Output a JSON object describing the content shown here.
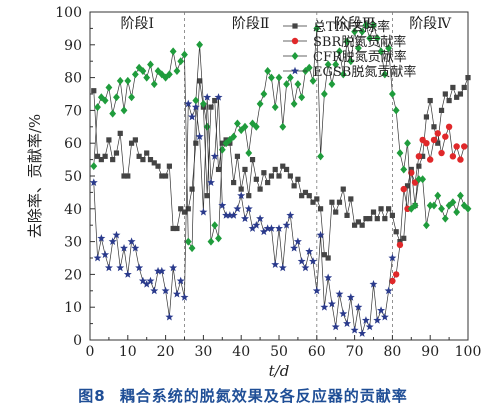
{
  "caption": {
    "figure_no": "图8",
    "text": "耦合系统的脱氮效果及各反应器的贡献率"
  },
  "chart_data": {
    "type": "line",
    "xlabel": "t/d",
    "ylabel": "去除率、贡献率/%",
    "xlim": [
      0,
      100
    ],
    "ylim": [
      0,
      100
    ],
    "x_ticks": [
      0,
      10,
      20,
      30,
      40,
      50,
      60,
      70,
      80,
      90,
      100
    ],
    "y_ticks": [
      0,
      10,
      20,
      30,
      40,
      50,
      60,
      70,
      80,
      90,
      100
    ],
    "phase_boundaries": [
      25,
      60,
      80
    ],
    "phases": [
      {
        "label": "阶段Ⅰ",
        "center": 12.5
      },
      {
        "label": "阶段Ⅱ",
        "center": 42.5
      },
      {
        "label": "阶段Ⅲ",
        "center": 70
      },
      {
        "label": "阶段Ⅳ",
        "center": 90
      }
    ],
    "legend_position": "top-right",
    "series": [
      {
        "name": "总TIN去除率",
        "color": "#444444",
        "marker": "square",
        "x": [
          1,
          2,
          3,
          4,
          5,
          6,
          7,
          8,
          9,
          10,
          11,
          12,
          13,
          14,
          15,
          16,
          17,
          18,
          19,
          20,
          21,
          22,
          23,
          24,
          25,
          26,
          27,
          28,
          29,
          30,
          31,
          32,
          33,
          34,
          35,
          36,
          37,
          38,
          39,
          40,
          41,
          42,
          43,
          44,
          45,
          46,
          47,
          48,
          49,
          50,
          51,
          52,
          53,
          54,
          55,
          56,
          57,
          58,
          59,
          60,
          61,
          62,
          63,
          64,
          65,
          66,
          67,
          68,
          69,
          70,
          71,
          72,
          73,
          74,
          75,
          76,
          77,
          78,
          79,
          80,
          81,
          82,
          83,
          84,
          85,
          86,
          87,
          88,
          89,
          90,
          91,
          92,
          93,
          94,
          95,
          96,
          97,
          98,
          99,
          100
        ],
        "y": [
          76,
          56,
          55,
          56,
          61,
          55,
          57,
          63,
          50,
          50,
          60,
          61,
          56,
          55,
          57,
          55,
          54,
          53,
          50,
          50,
          53,
          34,
          34,
          40,
          39,
          40,
          46,
          60,
          79,
          71,
          44,
          71,
          73,
          52,
          60,
          61,
          60,
          48,
          56,
          46,
          52,
          44,
          55,
          49,
          46,
          51,
          48,
          50,
          52,
          50,
          53,
          52,
          50,
          47,
          49,
          44,
          45,
          44,
          42,
          43,
          40,
          26,
          25,
          42,
          39,
          42,
          46,
          38,
          43,
          35,
          36,
          35,
          37,
          37,
          39,
          37,
          40,
          37,
          40,
          38,
          33,
          30,
          31,
          47,
          52,
          41,
          53,
          56,
          68,
          73,
          65,
          60,
          70,
          75,
          73,
          77,
          74,
          75,
          77,
          80
        ]
      },
      {
        "name": "SBR脱氮贡献率",
        "color": "#e0282a",
        "marker": "circle",
        "x": [
          80,
          81,
          82,
          83,
          84,
          85,
          86,
          87,
          88,
          89,
          90,
          91,
          92,
          93,
          94,
          95,
          96,
          97,
          98,
          99
        ],
        "y": [
          18,
          20,
          29,
          46,
          40,
          51,
          48,
          56,
          61,
          60,
          55,
          61,
          63,
          57,
          62,
          65,
          56,
          59,
          55,
          59
        ]
      },
      {
        "name": "CFR脱氮贡献率",
        "color": "#1f9c3c",
        "marker": "diamond",
        "x": [
          1,
          2,
          3,
          4,
          5,
          6,
          7,
          8,
          9,
          10,
          11,
          12,
          13,
          14,
          15,
          16,
          17,
          18,
          19,
          20,
          21,
          22,
          23,
          24,
          25,
          26,
          27,
          28,
          29,
          30,
          31,
          32,
          33,
          34,
          35,
          36,
          37,
          38,
          39,
          40,
          41,
          42,
          43,
          44,
          45,
          46,
          47,
          48,
          49,
          50,
          51,
          52,
          53,
          54,
          55,
          56,
          57,
          58,
          59,
          60,
          61,
          62,
          63,
          64,
          65,
          66,
          67,
          68,
          69,
          70,
          71,
          72,
          73,
          74,
          75,
          76,
          77,
          78,
          79,
          80,
          81,
          82,
          83,
          84,
          85,
          86,
          87,
          88,
          89,
          90,
          91,
          92,
          93,
          94,
          95,
          96,
          97,
          98,
          99,
          100
        ],
        "y": [
          53,
          71,
          74,
          73,
          77,
          69,
          74,
          79,
          70,
          79,
          74,
          81,
          83,
          82,
          80,
          84,
          78,
          82,
          81,
          80,
          81,
          88,
          82,
          85,
          87,
          30,
          28,
          73,
          90,
          72,
          65,
          30,
          35,
          31,
          58,
          60,
          61,
          62,
          66,
          64,
          65,
          57,
          66,
          65,
          72,
          75,
          82,
          80,
          71,
          80,
          65,
          78,
          80,
          72,
          78,
          74,
          82,
          83,
          79,
          95,
          56,
          75,
          84,
          78,
          84,
          88,
          81,
          91,
          85,
          94,
          89,
          94,
          96,
          92,
          96,
          92,
          88,
          81,
          89,
          75,
          70,
          57,
          52,
          60,
          40,
          41,
          49,
          49,
          35,
          41,
          41,
          44,
          40,
          37,
          41,
          42,
          39,
          44,
          41,
          40
        ]
      },
      {
        "name": "EGSB脱氮贡献率",
        "color": "#2a3a8c",
        "marker": "star",
        "x": [
          1,
          2,
          3,
          4,
          5,
          6,
          7,
          8,
          9,
          10,
          11,
          12,
          13,
          14,
          15,
          16,
          17,
          18,
          19,
          20,
          21,
          22,
          23,
          24,
          25,
          26,
          27,
          28,
          29,
          30,
          31,
          32,
          33,
          34,
          35,
          36,
          37,
          38,
          39,
          40,
          41,
          42,
          43,
          44,
          45,
          46,
          47,
          48,
          49,
          50,
          51,
          52,
          53,
          54,
          55,
          56,
          57,
          58,
          59,
          60,
          61,
          62,
          63,
          64,
          65,
          66,
          67,
          68,
          69,
          70,
          71,
          72,
          73,
          74,
          75,
          76,
          77,
          78,
          79,
          80
        ],
        "y": [
          48,
          25,
          31,
          26,
          22,
          30,
          32,
          22,
          28,
          20,
          30,
          28,
          22,
          18,
          17,
          18,
          15,
          21,
          21,
          15,
          7,
          22,
          14,
          18,
          13,
          72,
          68,
          71,
          62,
          39,
          74,
          48,
          56,
          74,
          41,
          38,
          38,
          38,
          40,
          44,
          37,
          40,
          34,
          35,
          37,
          33,
          34,
          34,
          23,
          34,
          22,
          35,
          38,
          28,
          30,
          24,
          22,
          27,
          24,
          15,
          32,
          10,
          19,
          11,
          4,
          14,
          8,
          5,
          13,
          3,
          10,
          2,
          6,
          4,
          17,
          6,
          9,
          7,
          15,
          25
        ]
      }
    ]
  }
}
